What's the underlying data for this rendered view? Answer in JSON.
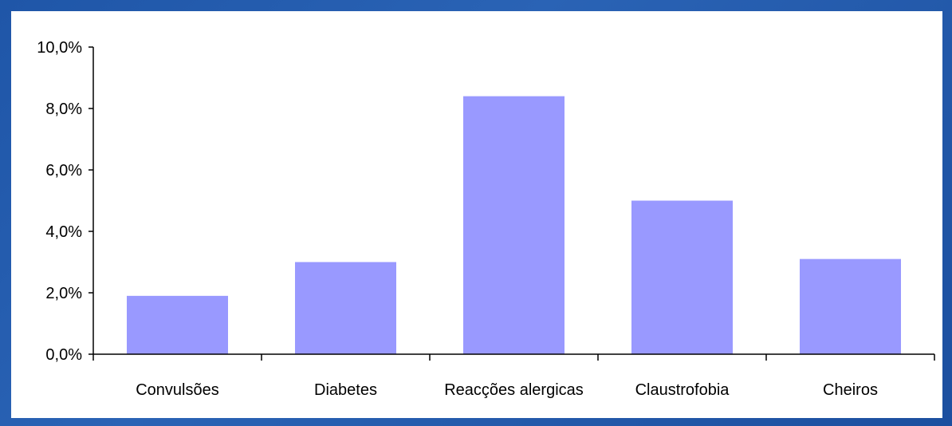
{
  "chart_data": {
    "type": "bar",
    "categories": [
      "Convulsões",
      "Diabetes",
      "Reacções alergicas",
      "Claustrofobia",
      "Cheiros"
    ],
    "values": [
      1.9,
      3.0,
      8.4,
      5.0,
      3.1
    ],
    "y_tick_labels": [
      "0,0%",
      "2,0%",
      "4,0%",
      "6,0%",
      "8,0%",
      "10,0%"
    ],
    "y_ticks": [
      0,
      2,
      4,
      6,
      8,
      10
    ],
    "ylim": [
      0,
      10
    ],
    "grid": false,
    "legend": "none",
    "bar_color": "#9999ff"
  }
}
